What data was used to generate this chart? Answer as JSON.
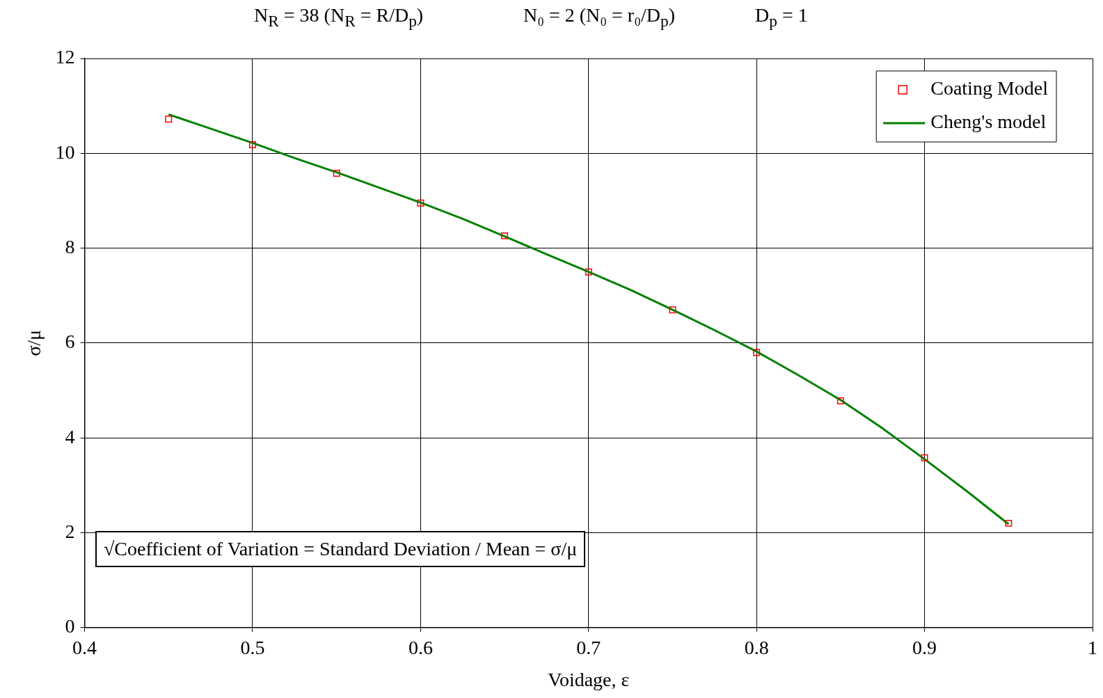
{
  "chart_data": {
    "type": "line",
    "xlabel": "Voidage, ε",
    "ylabel": "σ/μ",
    "annotations": [
      "N$_{R}$ = 38  (N$_{R}$ = R/D$_{p}$)",
      "N₀ = 2  (N₀ = r₀/D$_{p}$)",
      "D$_{p}$ = 1",
      "√Coefficient of Variation = Standard Deviation / Mean = σ/μ"
    ],
    "xlim": [
      0.4,
      1
    ],
    "xticks": [
      0.4,
      0.5,
      0.6,
      0.7,
      0.8,
      0.9,
      1
    ],
    "ylim": [
      0,
      12
    ],
    "yticks": [
      0,
      2,
      4,
      6,
      8,
      10,
      12
    ],
    "grid": true,
    "legend": "top right",
    "series": [
      {
        "name": "Coating Model",
        "type": "scatter",
        "marker": "square",
        "color": "#ff0000",
        "x": [
          0.45,
          0.5,
          0.55,
          0.6,
          0.65,
          0.7,
          0.75,
          0.8,
          0.85,
          0.9,
          0.95
        ],
        "values": [
          10.72,
          10.18,
          9.58,
          8.95,
          8.26,
          7.5,
          6.7,
          5.8,
          4.78,
          3.58,
          2.2
        ]
      },
      {
        "name": "Cheng's model",
        "type": "line",
        "marker": "none",
        "line_style": "solid",
        "color": "#008000",
        "x": [
          0.45,
          0.475,
          0.5,
          0.525,
          0.55,
          0.575,
          0.6,
          0.625,
          0.65,
          0.675,
          0.7,
          0.725,
          0.75,
          0.775,
          0.8,
          0.825,
          0.85,
          0.875,
          0.9,
          0.925,
          0.95
        ],
        "values": [
          10.82,
          10.52,
          10.22,
          9.9,
          9.6,
          9.28,
          8.96,
          8.62,
          8.25,
          7.87,
          7.5,
          7.12,
          6.7,
          6.27,
          5.82,
          5.32,
          4.8,
          4.2,
          3.55,
          2.88,
          2.18
        ]
      }
    ]
  }
}
